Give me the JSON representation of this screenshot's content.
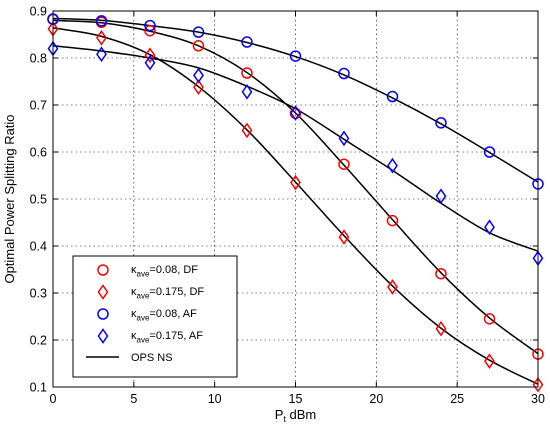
{
  "chart_data": {
    "type": "line",
    "title": "",
    "xlabel": {
      "main": "P",
      "sub": "t",
      "rest": " dBm"
    },
    "ylabel": "Optimal Power Splitting Ratio",
    "xlim": [
      0,
      30
    ],
    "ylim": [
      0.1,
      0.9
    ],
    "x_ticks": [
      0,
      5,
      10,
      15,
      20,
      25,
      30
    ],
    "y_ticks": [
      0.1,
      0.2,
      0.3,
      0.4,
      0.5,
      0.6,
      0.7,
      0.8,
      0.9
    ],
    "grid": true,
    "legend_position": "bottom-left",
    "x": [
      0,
      3,
      6,
      9,
      12,
      15,
      18,
      21,
      24,
      27,
      30
    ],
    "series": [
      {
        "name": {
          "kappa": "κ",
          "sub": "ave",
          "rest": "=0.08, DF"
        },
        "marker": "circle",
        "color": "#ff0000",
        "values": [
          0.882,
          0.876,
          0.858,
          0.826,
          0.768,
          0.682,
          0.574,
          0.454,
          0.341,
          0.245,
          0.17
        ]
      },
      {
        "name": {
          "kappa": "κ",
          "sub": "ave",
          "rest": "=0.175, DF"
        },
        "marker": "diamond",
        "color": "#ff0000",
        "values": [
          0.862,
          0.843,
          0.806,
          0.738,
          0.646,
          0.535,
          0.419,
          0.313,
          0.224,
          0.155,
          0.105
        ]
      },
      {
        "name": {
          "kappa": "κ",
          "sub": "ave",
          "rest": "=0.08, AF"
        },
        "marker": "circle",
        "color": "#0000ff",
        "values": [
          0.883,
          0.879,
          0.869,
          0.855,
          0.834,
          0.804,
          0.767,
          0.718,
          0.662,
          0.6,
          0.532
        ]
      },
      {
        "name": {
          "kappa": "κ",
          "sub": "ave",
          "rest": "=0.175, AF"
        },
        "marker": "diamond",
        "color": "#0000ff",
        "values": [
          0.82,
          0.808,
          0.79,
          0.763,
          0.728,
          0.683,
          0.629,
          0.571,
          0.506,
          0.44,
          0.374
        ]
      }
    ],
    "curves": {
      "name": "OPS NS",
      "color": "#000000",
      "lines": [
        [
          0.88,
          0.875,
          0.857,
          0.826,
          0.769,
          0.683,
          0.572,
          0.456,
          0.343,
          0.247,
          0.171
        ],
        [
          0.864,
          0.846,
          0.807,
          0.739,
          0.647,
          0.536,
          0.422,
          0.315,
          0.225,
          0.157,
          0.106
        ],
        [
          0.884,
          0.88,
          0.869,
          0.855,
          0.833,
          0.803,
          0.764,
          0.715,
          0.66,
          0.599,
          0.536
        ],
        [
          0.826,
          0.815,
          0.8,
          0.779,
          0.74,
          0.692,
          0.627,
          0.561,
          0.491,
          0.428,
          0.389
        ]
      ]
    }
  }
}
